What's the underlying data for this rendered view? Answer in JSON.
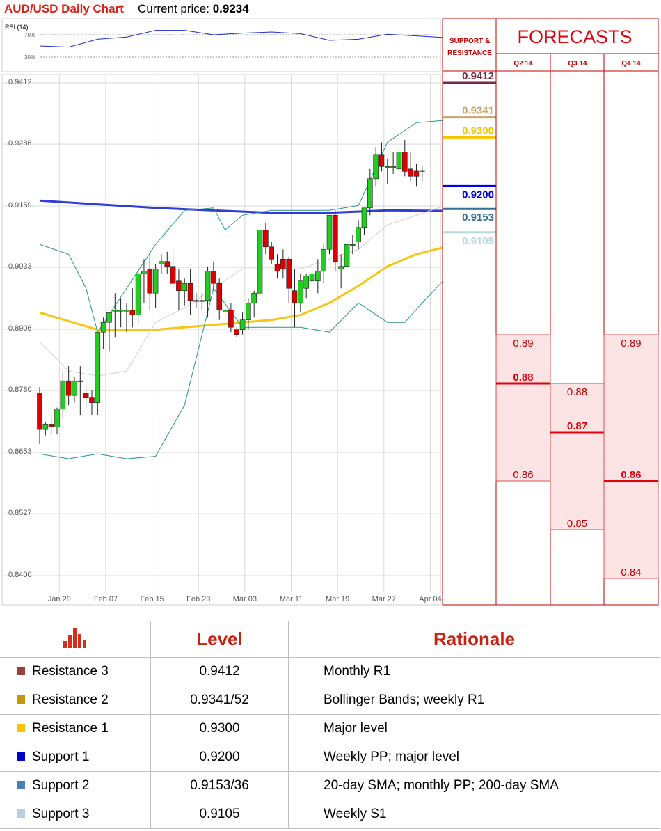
{
  "header": {
    "title": "AUD/USD Daily Chart",
    "price_label": "Current price: ",
    "price_value": "0.9234"
  },
  "rsi": {
    "label": "RSI (14)",
    "level_high": "70%",
    "level_low": "30%"
  },
  "support_resistance": {
    "label_line1": "SUPPORT &",
    "label_line2": "RESISTANCE"
  },
  "forecasts": {
    "title": "FORECASTS",
    "quarters": [
      "Q2 14",
      "Q3 14",
      "Q4 14"
    ],
    "ranges": [
      {
        "quarter": "Q2 14",
        "high": "0.89",
        "mid": "0.88",
        "low": "0.86",
        "high_v": 0.89,
        "mid_v": 0.88,
        "low_v": 0.86
      },
      {
        "quarter": "Q3 14",
        "high": "0.88",
        "mid": "0.87",
        "low": "0.85",
        "high_v": 0.88,
        "mid_v": 0.87,
        "low_v": 0.85
      },
      {
        "quarter": "Q4 14",
        "high": "0.89",
        "mid": "0.86",
        "low": "0.84",
        "high_v": 0.89,
        "mid_v": 0.86,
        "low_v": 0.84
      }
    ]
  },
  "colors": {
    "r3": "#7b2840",
    "r2": "#c8a46a",
    "r1": "#f7c600",
    "s1": "#0000e6",
    "s2": "#356f94",
    "s3": "#b9d8de",
    "up": "#22cc22",
    "down": "#dd0000",
    "sma20": "#2f3cd6",
    "sma200": "#f5c518",
    "bb": "#2a8f8f"
  },
  "table": {
    "headers": [
      "",
      "Level",
      "Rationale"
    ],
    "rows": [
      {
        "name": "Resistance 3",
        "level": "0.9412",
        "rationale": "Monthly R1",
        "color": "#a03c3c"
      },
      {
        "name": "Resistance 2",
        "level": "0.9341/52",
        "rationale": "Bollinger Bands; weekly R1",
        "color": "#c8960a"
      },
      {
        "name": "Resistance 1",
        "level": "0.9300",
        "rationale": "Major level",
        "color": "#f7c600"
      },
      {
        "name": "Support 1",
        "level": "0.9200",
        "rationale": "Weekly PP; major level",
        "color": "#0000cc"
      },
      {
        "name": "Support 2",
        "level": "0.9153/36",
        "rationale": "20-day SMA; monthly PP; 200-day SMA",
        "color": "#4a7fb5"
      },
      {
        "name": "Support 3",
        "level": "0.9105",
        "rationale": "Weekly S1",
        "color": "#b8cde6"
      }
    ]
  },
  "chart_data": {
    "type": "candlestick",
    "y_ticks": [
      "0.9412",
      "0.9286",
      "0.9159",
      "0.9033",
      "0.8906",
      "0.8780",
      "0.8653",
      "0.8527",
      "0.8400"
    ],
    "y_tick_values": [
      0.9412,
      0.9286,
      0.9159,
      0.9033,
      0.8906,
      0.878,
      0.8653,
      0.8527,
      0.84
    ],
    "ylim": [
      0.84,
      0.9412
    ],
    "x_ticks": [
      "Jan 29",
      "Feb 07",
      "Feb 15",
      "Feb 23",
      "Mar 03",
      "Mar 11",
      "Mar 19",
      "Mar 27",
      "Apr 04"
    ],
    "x_tick_indices": [
      1,
      9,
      17,
      25,
      33,
      41,
      49,
      57,
      65
    ],
    "grid": true,
    "candles": [
      [
        0.8775,
        0.8787,
        0.867,
        0.87
      ],
      [
        0.87,
        0.8716,
        0.8688,
        0.8711
      ],
      [
        0.8711,
        0.8725,
        0.869,
        0.8705
      ],
      [
        0.8705,
        0.8745,
        0.869,
        0.8742
      ],
      [
        0.8742,
        0.882,
        0.8722,
        0.88
      ],
      [
        0.88,
        0.883,
        0.875,
        0.877
      ],
      [
        0.877,
        0.8808,
        0.8755,
        0.88
      ],
      [
        0.88,
        0.883,
        0.8729,
        0.88
      ],
      [
        0.8775,
        0.879,
        0.8745,
        0.8765
      ],
      [
        0.8765,
        0.878,
        0.873,
        0.8755
      ],
      [
        0.8755,
        0.89,
        0.873,
        0.89
      ],
      [
        0.89,
        0.893,
        0.8865,
        0.892
      ],
      [
        0.892,
        0.894,
        0.886,
        0.894
      ],
      [
        0.8945,
        0.898,
        0.889,
        0.8945
      ],
      [
        0.8945,
        0.897,
        0.891,
        0.8945
      ],
      [
        0.8945,
        0.896,
        0.89,
        0.8945
      ],
      [
        0.8945,
        0.899,
        0.891,
        0.8935
      ],
      [
        0.8935,
        0.903,
        0.8915,
        0.902
      ],
      [
        0.902,
        0.905,
        0.896,
        0.9025
      ],
      [
        0.903,
        0.906,
        0.8945,
        0.898
      ],
      [
        0.898,
        0.904,
        0.895,
        0.903
      ],
      [
        0.904,
        0.906,
        0.902,
        0.9045
      ],
      [
        0.9045,
        0.9065,
        0.902,
        0.9035
      ],
      [
        0.9035,
        0.907,
        0.899,
        0.9
      ],
      [
        0.9005,
        0.903,
        0.8945,
        0.8985
      ],
      [
        0.8985,
        0.901,
        0.8955,
        0.9
      ],
      [
        0.9,
        0.903,
        0.8935,
        0.8965
      ],
      [
        0.8965,
        0.898,
        0.895,
        0.8965
      ],
      [
        0.8965,
        0.898,
        0.8945,
        0.8965
      ],
      [
        0.8965,
        0.9035,
        0.893,
        0.9025
      ],
      [
        0.9025,
        0.9045,
        0.8985,
        0.9
      ],
      [
        0.9,
        0.901,
        0.8925,
        0.8945
      ],
      [
        0.8945,
        0.898,
        0.892,
        0.8945
      ],
      [
        0.8945,
        0.896,
        0.89,
        0.891
      ],
      [
        0.8905,
        0.891,
        0.889,
        0.8895
      ],
      [
        0.8905,
        0.894,
        0.8895,
        0.8925
      ],
      [
        0.8925,
        0.897,
        0.8905,
        0.896
      ],
      [
        0.896,
        0.8985,
        0.893,
        0.898
      ],
      [
        0.898,
        0.9115,
        0.8975,
        0.911
      ],
      [
        0.911,
        0.9125,
        0.906,
        0.9075
      ],
      [
        0.9075,
        0.9085,
        0.904,
        0.905
      ],
      [
        0.904,
        0.906,
        0.901,
        0.9025
      ],
      [
        0.905,
        0.907,
        0.901,
        0.903
      ],
      [
        0.905,
        0.9055,
        0.896,
        0.899
      ],
      [
        0.8985,
        0.903,
        0.891,
        0.896
      ],
      [
        0.896,
        0.902,
        0.894,
        0.9005
      ],
      [
        0.899,
        0.902,
        0.897,
        0.9015
      ],
      [
        0.9005,
        0.91,
        0.899,
        0.902
      ],
      [
        0.9005,
        0.905,
        0.898,
        0.9025
      ],
      [
        0.9025,
        0.908,
        0.9,
        0.907
      ],
      [
        0.907,
        0.914,
        0.906,
        0.914
      ],
      [
        0.914,
        0.915,
        0.9025,
        0.9045
      ],
      [
        0.903,
        0.906,
        0.899,
        0.9035
      ],
      [
        0.9035,
        0.9095,
        0.9025,
        0.908
      ],
      [
        0.908,
        0.91,
        0.906,
        0.908
      ],
      [
        0.9085,
        0.913,
        0.907,
        0.9115
      ],
      [
        0.9115,
        0.9155,
        0.91,
        0.9155
      ],
      [
        0.9155,
        0.9235,
        0.914,
        0.9215
      ],
      [
        0.9215,
        0.928,
        0.92,
        0.9265
      ],
      [
        0.9265,
        0.929,
        0.923,
        0.924
      ],
      [
        0.924,
        0.9255,
        0.9205,
        0.924
      ],
      [
        0.924,
        0.927,
        0.9225,
        0.924
      ],
      [
        0.9235,
        0.9285,
        0.921,
        0.927
      ],
      [
        0.927,
        0.9295,
        0.922,
        0.923
      ],
      [
        0.9235,
        0.927,
        0.921,
        0.922
      ],
      [
        0.9232,
        0.9245,
        0.92,
        0.922
      ],
      [
        0.923,
        0.924,
        0.921,
        0.9232
      ]
    ],
    "series": [
      {
        "values": [
          [
            0,
            0.917
          ],
          [
            20,
            0.9155
          ],
          [
            40,
            0.9145
          ],
          [
            50,
            0.9145
          ],
          [
            60,
            0.915
          ],
          [
            70,
            0.9149
          ]
        ]
      },
      {
        "values": [
          [
            0,
            0.894
          ],
          [
            10,
            0.8905
          ],
          [
            20,
            0.8905
          ],
          [
            30,
            0.8915
          ],
          [
            40,
            0.8925
          ],
          [
            45,
            0.8935
          ],
          [
            50,
            0.896
          ],
          [
            55,
            0.8995
          ],
          [
            60,
            0.9035
          ],
          [
            65,
            0.906
          ],
          [
            70,
            0.9075
          ]
        ]
      },
      {
        "values": [
          [
            0,
            0.908
          ],
          [
            5,
            0.906
          ],
          [
            8,
            0.899
          ],
          [
            10,
            0.89
          ],
          [
            15,
            0.899
          ],
          [
            20,
            0.908
          ],
          [
            25,
            0.915
          ],
          [
            30,
            0.9155
          ],
          [
            32,
            0.911
          ],
          [
            35,
            0.914
          ],
          [
            40,
            0.915
          ],
          [
            45,
            0.915
          ],
          [
            50,
            0.915
          ],
          [
            55,
            0.916
          ],
          [
            60,
            0.929
          ],
          [
            65,
            0.933
          ],
          [
            70,
            0.9335
          ]
        ]
      },
      {
        "values": [
          [
            0,
            0.865
          ],
          [
            5,
            0.864
          ],
          [
            10,
            0.865
          ],
          [
            15,
            0.864
          ],
          [
            20,
            0.8645
          ],
          [
            25,
            0.875
          ],
          [
            30,
            0.899
          ],
          [
            35,
            0.891
          ],
          [
            40,
            0.891
          ],
          [
            45,
            0.891
          ],
          [
            50,
            0.89
          ],
          [
            55,
            0.896
          ],
          [
            60,
            0.892
          ],
          [
            63,
            0.892
          ],
          [
            66,
            0.896
          ],
          [
            70,
            0.901
          ]
        ]
      },
      {
        "values": [
          [
            0,
            0.888
          ],
          [
            5,
            0.882
          ],
          [
            10,
            0.881
          ],
          [
            15,
            0.882
          ],
          [
            20,
            0.892
          ],
          [
            25,
            0.895
          ],
          [
            30,
            0.899
          ],
          [
            35,
            0.903
          ],
          [
            40,
            0.903
          ],
          [
            45,
            0.903
          ],
          [
            50,
            0.905
          ],
          [
            55,
            0.907
          ],
          [
            60,
            0.912
          ],
          [
            70,
            0.916
          ]
        ]
      }
    ],
    "rsi": [
      [
        0,
        50
      ],
      [
        5,
        48
      ],
      [
        10,
        62
      ],
      [
        15,
        66
      ],
      [
        20,
        78
      ],
      [
        25,
        78
      ],
      [
        30,
        70
      ],
      [
        35,
        73
      ],
      [
        40,
        75
      ],
      [
        45,
        72
      ],
      [
        50,
        60
      ],
      [
        55,
        62
      ],
      [
        60,
        71
      ],
      [
        65,
        68
      ],
      [
        70,
        65
      ]
    ],
    "sr_levels": [
      {
        "value": 0.9412,
        "label": "0.9412",
        "color": "#7b2840"
      },
      {
        "value": 0.9341,
        "label": "0.9341",
        "color": "#c8a46a"
      },
      {
        "value": 0.93,
        "label": "0.9300",
        "color": "#f7c600"
      },
      {
        "value": 0.92,
        "label": "0.9200",
        "color": "#0000e6"
      },
      {
        "value": 0.9153,
        "label": "0.9153",
        "color": "#356f94"
      },
      {
        "value": 0.9105,
        "label": "0.9105",
        "color": "#b9d8de"
      }
    ]
  }
}
